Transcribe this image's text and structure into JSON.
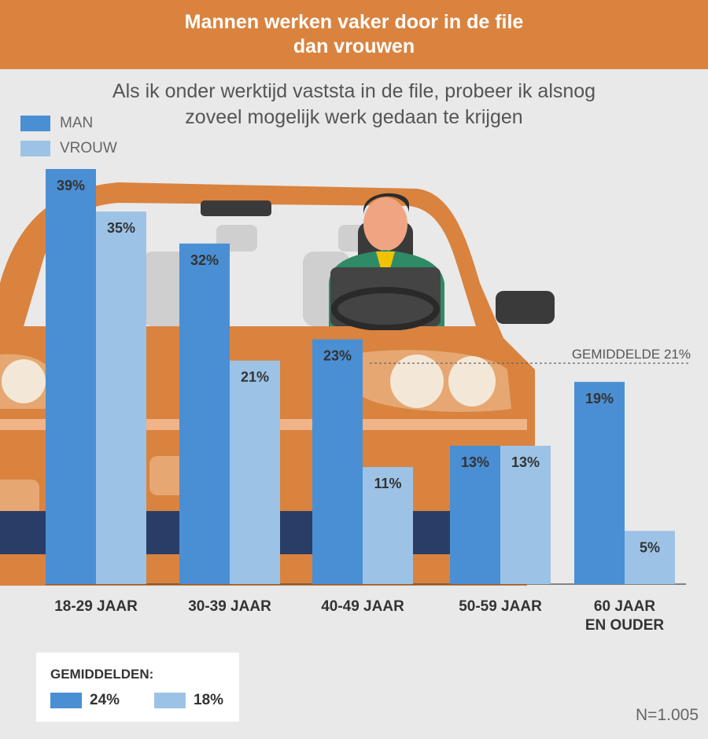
{
  "header": {
    "title_line1": "Mannen werken vaker door in de file",
    "title_line2": "dan vrouwen"
  },
  "subtitle": {
    "line1": "Als ik onder werktijd vaststa in de file, probeer ik alsnog",
    "line2": "zoveel mogelijk werk gedaan te krijgen"
  },
  "legend": [
    {
      "label": "MAN",
      "color": "#4a8fd4"
    },
    {
      "label": "VROUW",
      "color": "#9cc3e6"
    }
  ],
  "chart_data": {
    "type": "bar",
    "categories": [
      [
        "18-29 JAAR"
      ],
      [
        "30-39 JAAR"
      ],
      [
        "40-49 JAAR"
      ],
      [
        "50-59 JAAR"
      ],
      [
        "60 JAAR",
        "EN OUDER"
      ]
    ],
    "series": [
      {
        "name": "MAN",
        "values": [
          39,
          32,
          23,
          13,
          19
        ],
        "labels": [
          "39%",
          "32%",
          "23%",
          "13%",
          "19%"
        ],
        "color": "#4a8fd4"
      },
      {
        "name": "VROUW",
        "values": [
          35,
          21,
          11,
          13,
          5
        ],
        "labels": [
          "35%",
          "21%",
          "11%",
          "13%",
          "5%"
        ],
        "color": "#9cc3e6"
      }
    ],
    "reference_line": {
      "label": "GEMIDDELDE 21%",
      "value": 21
    },
    "ylim": [
      0,
      39
    ]
  },
  "averages": {
    "title": "GEMIDDELDEN:",
    "man": "24%",
    "vrouw": "18%"
  },
  "sample": "N=1.005"
}
